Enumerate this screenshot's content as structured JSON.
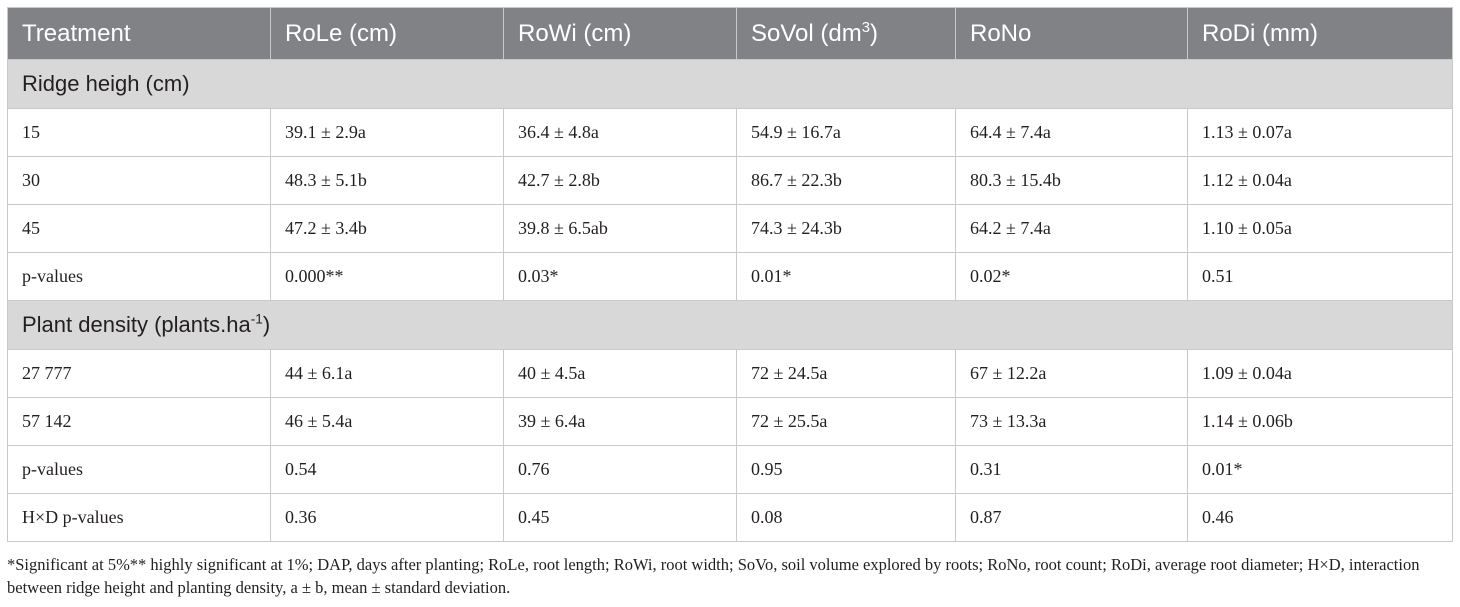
{
  "table": {
    "headers": [
      {
        "text": "Treatment",
        "sup": ""
      },
      {
        "text": "RoLe (cm)",
        "sup": ""
      },
      {
        "text": "RoWi (cm)",
        "sup": ""
      },
      {
        "text": "SoVol (dm",
        "sup": "3",
        "after": ")"
      },
      {
        "text": "RoNo",
        "sup": ""
      },
      {
        "text": "RoDi (mm)",
        "sup": ""
      }
    ],
    "sections": [
      {
        "title": "Ridge heigh (cm)",
        "title_sup": "",
        "title_after": "",
        "rows": [
          [
            "15",
            "39.1 ± 2.9a",
            "36.4 ± 4.8a",
            "54.9 ± 16.7a",
            "64.4 ± 7.4a",
            "1.13 ± 0.07a"
          ],
          [
            "30",
            "48.3 ± 5.1b",
            "42.7 ± 2.8b",
            "86.7 ± 22.3b",
            "80.3 ± 15.4b",
            "1.12 ± 0.04a"
          ],
          [
            "45",
            "47.2 ± 3.4b",
            "39.8 ± 6.5ab",
            "74.3 ± 24.3b",
            "64.2 ± 7.4a",
            "1.10 ± 0.05a"
          ],
          [
            "p-values",
            "0.000**",
            "0.03*",
            "0.01*",
            "0.02*",
            "0.51"
          ]
        ]
      },
      {
        "title": "Plant density (plants.ha",
        "title_sup": "-1",
        "title_after": ")",
        "rows": [
          [
            "27 777",
            "44 ± 6.1a",
            "40 ± 4.5a",
            "72 ± 24.5a",
            "67 ± 12.2a",
            "1.09 ± 0.04a"
          ],
          [
            "57 142",
            "46 ± 5.4a",
            "39 ± 6.4a",
            "72 ± 25.5a",
            "73 ± 13.3a",
            "1.14 ± 0.06b"
          ],
          [
            "p-values",
            "0.54",
            "0.76",
            "0.95",
            "0.31",
            "0.01*"
          ],
          [
            "H×D p-values",
            "0.36",
            "0.45",
            "0.08",
            "0.87",
            "0.46"
          ]
        ]
      }
    ]
  },
  "footnote": "*Significant at 5%** highly significant at 1%; DAP, days after planting; RoLe, root length; RoWi, root width; SoVo, soil volume explored by roots; RoNo, root count; RoDi, average root diameter; H×D, interaction between ridge height and planting density, a ± b, mean ± standard deviation."
}
